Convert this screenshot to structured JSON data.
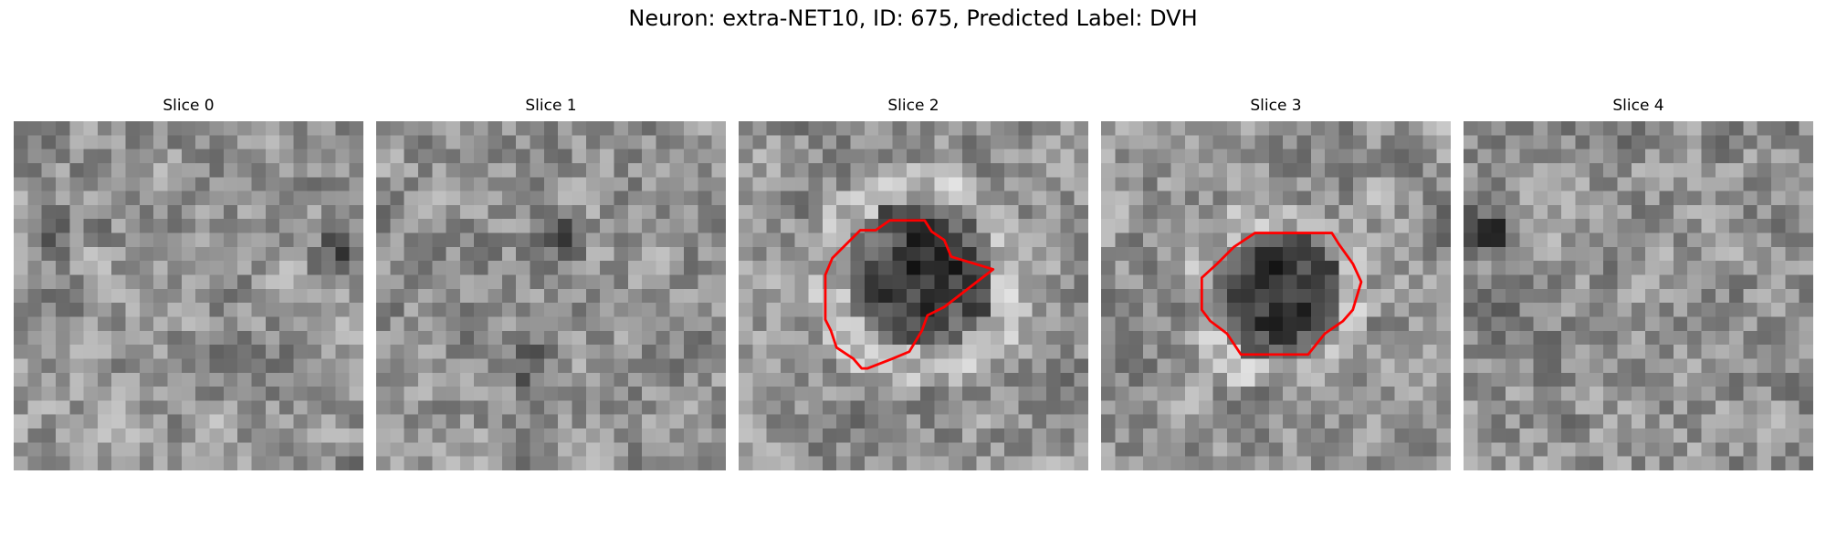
{
  "figure": {
    "title": "Neuron: extra-NET10, ID: 675, Predicted Label: DVH"
  },
  "colormap": "gray",
  "contour_color": "#ff0000",
  "grid_size": 25,
  "panels": [
    {
      "title": "Slice 0",
      "seed": 11,
      "blob": null,
      "contour": null,
      "extra_dark": [
        [
          23,
          10,
          0.35
        ],
        [
          2,
          8,
          0.25
        ]
      ]
    },
    {
      "title": "Slice 1",
      "seed": 23,
      "blob": null,
      "contour": null,
      "extra_dark": [
        [
          13,
          8,
          0.3
        ],
        [
          11,
          18,
          0.25
        ]
      ]
    },
    {
      "title": "Slice 2",
      "seed": 37,
      "blob": [
        13,
        11,
        5.5
      ],
      "contour": [
        [
          8.7,
          7.8
        ],
        [
          9.8,
          7.8
        ],
        [
          10.8,
          7.1
        ],
        [
          11.2,
          7.1
        ],
        [
          12.0,
          7.1
        ],
        [
          13.3,
          7.1
        ],
        [
          13.8,
          7.9
        ],
        [
          14.7,
          8.5
        ],
        [
          15.2,
          9.7
        ],
        [
          18.2,
          10.6
        ],
        [
          14.7,
          13.3
        ],
        [
          13.5,
          13.9
        ],
        [
          13.1,
          15.0
        ],
        [
          12.2,
          16.5
        ],
        [
          11.0,
          17.0
        ],
        [
          9.2,
          17.7
        ],
        [
          8.8,
          17.7
        ],
        [
          8.2,
          17.0
        ],
        [
          7.0,
          16.2
        ],
        [
          6.6,
          15.0
        ],
        [
          6.2,
          14.2
        ],
        [
          6.2,
          11.0
        ],
        [
          6.7,
          9.8
        ],
        [
          7.8,
          8.7
        ]
      ]
    },
    {
      "title": "Slice 3",
      "seed": 51,
      "blob": [
        12.5,
        12.5,
        4.5
      ],
      "contour": [
        [
          11.0,
          8.0
        ],
        [
          14.5,
          8.0
        ],
        [
          16.5,
          8.0
        ],
        [
          17.0,
          8.8
        ],
        [
          18.0,
          10.2
        ],
        [
          18.6,
          11.5
        ],
        [
          18.0,
          13.5
        ],
        [
          17.3,
          14.3
        ],
        [
          16.0,
          15.2
        ],
        [
          14.8,
          16.7
        ],
        [
          12.5,
          16.7
        ],
        [
          10.0,
          16.7
        ],
        [
          9.0,
          15.2
        ],
        [
          7.8,
          14.3
        ],
        [
          7.2,
          13.5
        ],
        [
          7.2,
          11.2
        ],
        [
          8.3,
          10.2
        ],
        [
          9.5,
          9.0
        ]
      ]
    },
    {
      "title": "Slice 4",
      "seed": 67,
      "blob": null,
      "contour": null,
      "extra_dark": [
        [
          2,
          8,
          0.45
        ],
        [
          4,
          12,
          0.2
        ]
      ]
    }
  ]
}
